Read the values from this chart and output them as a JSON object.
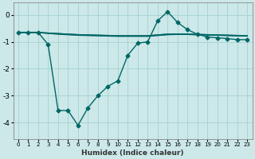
{
  "xlabel": "Humidex (Indice chaleur)",
  "bg_color": "#cce8e8",
  "grid_color": "#aad4d4",
  "line_color": "#006666",
  "xlim": [
    -0.5,
    23.5
  ],
  "ylim": [
    -4.6,
    0.45
  ],
  "yticks": [
    0,
    -1,
    -2,
    -3,
    -4
  ],
  "xticks": [
    0,
    1,
    2,
    3,
    4,
    5,
    6,
    7,
    8,
    9,
    10,
    11,
    12,
    13,
    14,
    15,
    16,
    17,
    18,
    19,
    20,
    21,
    22,
    23
  ],
  "series": [
    {
      "x": [
        0,
        1,
        2,
        3,
        4,
        5,
        6,
        7,
        8,
        9,
        10,
        11,
        12,
        13,
        14,
        15,
        16,
        17,
        18,
        19,
        20,
        21,
        22,
        23
      ],
      "y": [
        -0.65,
        -0.65,
        -0.65,
        -1.1,
        -3.55,
        -3.55,
        -4.1,
        -3.45,
        -3.0,
        -2.65,
        -2.45,
        -1.5,
        -1.05,
        -1.0,
        -0.22,
        0.12,
        -0.28,
        -0.55,
        -0.72,
        -0.82,
        -0.85,
        -0.88,
        -0.92,
        -0.92
      ],
      "marker": "D",
      "markersize": 2.5,
      "linewidth": 1.0
    },
    {
      "x": [
        0,
        1,
        2,
        3,
        4,
        5,
        6,
        7,
        8,
        9,
        10,
        11,
        12,
        13,
        14,
        15,
        16,
        17,
        18,
        19,
        20,
        21,
        22,
        23
      ],
      "y": [
        -0.65,
        -0.65,
        -0.65,
        -0.68,
        -0.7,
        -0.72,
        -0.74,
        -0.75,
        -0.76,
        -0.77,
        -0.78,
        -0.78,
        -0.78,
        -0.78,
        -0.75,
        -0.72,
        -0.72,
        -0.72,
        -0.73,
        -0.74,
        -0.75,
        -0.76,
        -0.77,
        -0.78
      ],
      "marker": null,
      "linewidth": 1.2
    },
    {
      "x": [
        0,
        1,
        2,
        3,
        4,
        5,
        6,
        7,
        8,
        9,
        10,
        11,
        12,
        13,
        14,
        15,
        16,
        17,
        18,
        19,
        20,
        21,
        22,
        23
      ],
      "y": [
        -0.65,
        -0.65,
        -0.65,
        -0.67,
        -0.69,
        -0.71,
        -0.73,
        -0.74,
        -0.75,
        -0.76,
        -0.77,
        -0.77,
        -0.77,
        -0.77,
        -0.74,
        -0.71,
        -0.71,
        -0.71,
        -0.72,
        -0.73,
        -0.74,
        -0.75,
        -0.76,
        -0.77
      ],
      "marker": null,
      "linewidth": 0.8
    },
    {
      "x": [
        0,
        1,
        2,
        3,
        4,
        5,
        6,
        7,
        8,
        9,
        10,
        11,
        12,
        13,
        14,
        15,
        16,
        17,
        18,
        19,
        20,
        21,
        22,
        23
      ],
      "y": [
        -0.65,
        -0.65,
        -0.65,
        -0.69,
        -0.72,
        -0.74,
        -0.76,
        -0.77,
        -0.78,
        -0.79,
        -0.8,
        -0.8,
        -0.8,
        -0.8,
        -0.77,
        -0.74,
        -0.73,
        -0.73,
        -0.74,
        -0.75,
        -0.76,
        -0.77,
        -0.78,
        -0.79
      ],
      "marker": null,
      "linewidth": 0.8
    }
  ]
}
